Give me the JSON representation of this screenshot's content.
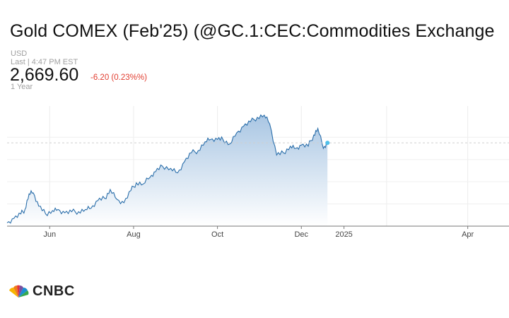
{
  "header": {
    "title": "Gold COMEX (Feb'25) (@GC.1:CEC:Commodities Exchange",
    "currency": "USD",
    "last_label": "Last | 4:47 PM EST",
    "price": "2,669.60",
    "change": "-6.20 (0.23%%)",
    "range": "1 Year"
  },
  "colors": {
    "line": "#2a6eaa",
    "fill_top": "#a9c6e3",
    "fill_bottom": "#ffffff",
    "dot": "#4ec0ea",
    "change": "#e13d30"
  },
  "chart_data": {
    "type": "area",
    "x_ticks": [
      "Jun",
      "Aug",
      "Oct",
      "Dec",
      "2025",
      "Apr"
    ],
    "grid": true,
    "watermark": "CNBC",
    "series": [
      {
        "x": [
          "2024-05-01",
          "2024-05-06",
          "2024-05-11",
          "2024-05-14",
          "2024-05-17",
          "2024-05-20",
          "2024-05-24",
          "2024-05-29",
          "2024-06-03",
          "2024-06-07",
          "2024-06-12",
          "2024-06-17",
          "2024-06-22",
          "2024-06-27",
          "2024-07-01",
          "2024-07-06",
          "2024-07-11",
          "2024-07-15",
          "2024-07-20",
          "2024-07-25",
          "2024-07-30",
          "2024-08-03",
          "2024-08-08",
          "2024-08-13",
          "2024-08-17",
          "2024-08-22",
          "2024-08-28",
          "2024-09-02",
          "2024-09-07",
          "2024-09-12",
          "2024-09-17",
          "2024-09-22",
          "2024-09-26",
          "2024-10-01",
          "2024-10-05",
          "2024-10-10",
          "2024-10-15",
          "2024-10-20",
          "2024-10-25",
          "2024-10-30",
          "2024-11-04",
          "2024-11-08",
          "2024-11-13",
          "2024-11-18",
          "2024-11-23",
          "2024-11-27",
          "2024-12-01",
          "2024-12-06",
          "2024-12-10",
          "2024-12-13",
          "2024-12-17",
          "2024-12-20"
        ],
        "y": [
          2315,
          2335,
          2355,
          2375,
          2445,
          2450,
          2390,
          2355,
          2370,
          2375,
          2360,
          2365,
          2365,
          2375,
          2380,
          2415,
          2425,
          2465,
          2420,
          2405,
          2460,
          2495,
          2490,
          2520,
          2545,
          2570,
          2560,
          2540,
          2590,
          2630,
          2640,
          2680,
          2690,
          2690,
          2690,
          2670,
          2720,
          2750,
          2770,
          2790,
          2800,
          2760,
          2620,
          2630,
          2660,
          2650,
          2665,
          2660,
          2710,
          2740,
          2650,
          2675
        ]
      }
    ]
  }
}
